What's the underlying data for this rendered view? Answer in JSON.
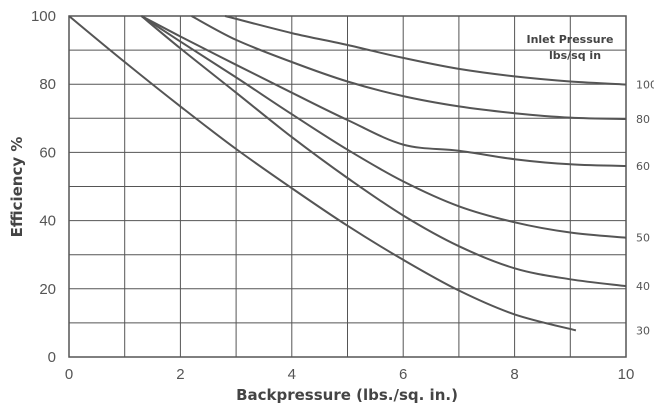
{
  "chart_data": {
    "type": "line",
    "xlabel": "Backpressure (lbs./sq. in.)",
    "ylabel": "Efficiency %",
    "xlim": [
      0,
      10
    ],
    "ylim": [
      0,
      100
    ],
    "x_ticks": [
      "0",
      "2",
      "4",
      "6",
      "8",
      "10"
    ],
    "y_ticks": [
      "0",
      "20",
      "40",
      "60",
      "80",
      "100"
    ],
    "grid": true,
    "legend_title": [
      "Inlet Pressure",
      "lbs/sq in"
    ],
    "series": [
      {
        "name": "100",
        "x": [
          2.8,
          4,
          5,
          6,
          7,
          8,
          9,
          10
        ],
        "y": [
          100,
          95,
          91.5,
          87.7,
          84.5,
          82.3,
          80.8,
          79.9
        ]
      },
      {
        "name": "80",
        "x": [
          2.2,
          3,
          4,
          5,
          6,
          7,
          8,
          9,
          10
        ],
        "y": [
          100,
          93,
          86.5,
          80.8,
          76.5,
          73.5,
          71.5,
          70.2,
          69.8
        ]
      },
      {
        "name": "60",
        "x": [
          1.3,
          2,
          3,
          4,
          5,
          6,
          7,
          8,
          9,
          10
        ],
        "y": [
          100,
          94,
          85.7,
          77.5,
          69.5,
          62.3,
          60.5,
          58,
          56.5,
          56
        ]
      },
      {
        "name": "50",
        "x": [
          1.3,
          2,
          3,
          4,
          5,
          6,
          7,
          8,
          9,
          10
        ],
        "y": [
          100,
          92.5,
          82,
          71.2,
          60.8,
          51.5,
          44.2,
          39.5,
          36.5,
          35
        ]
      },
      {
        "name": "40",
        "x": [
          1.3,
          2,
          3,
          4,
          5,
          6,
          7,
          8,
          9,
          10
        ],
        "y": [
          100,
          90.5,
          77.5,
          64.5,
          52.5,
          41.5,
          32.5,
          26,
          22.8,
          20.8
        ]
      },
      {
        "name": "30",
        "x": [
          0,
          1,
          2,
          3,
          4,
          5,
          6,
          7,
          8,
          9.1
        ],
        "y": [
          100,
          86.5,
          73.5,
          61,
          49.5,
          38.5,
          28.5,
          19.5,
          12.5,
          7.8
        ]
      }
    ]
  }
}
